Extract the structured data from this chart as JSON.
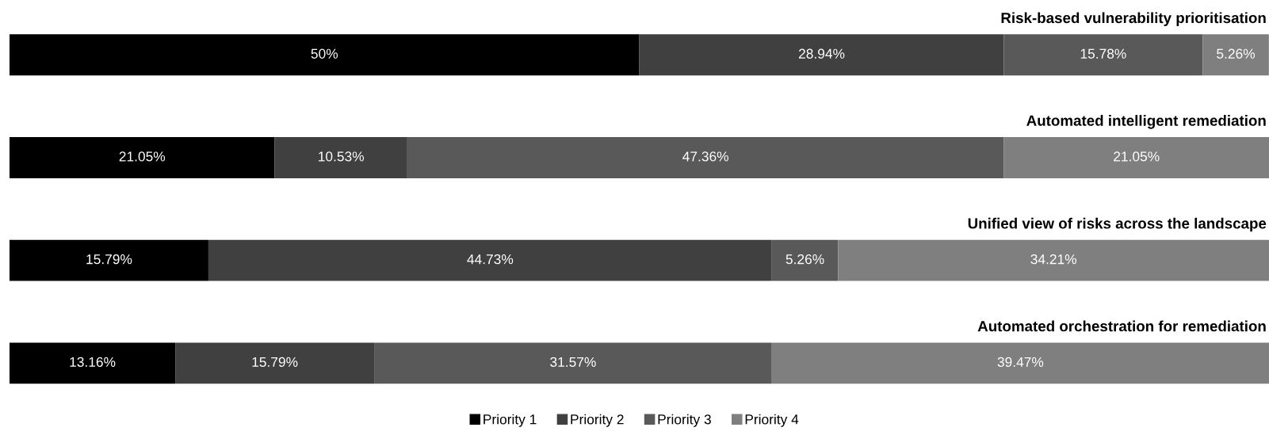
{
  "chart_data": {
    "type": "bar",
    "orientation": "horizontal",
    "stacked": true,
    "legend": "bottom",
    "categories": [
      "Risk-based vulnerability prioritisation",
      "Automated intelligent remediation",
      "Unified view of risks across the landscape",
      "Automated orchestration for remediation"
    ],
    "series": [
      {
        "name": "Priority 1",
        "color": "#000000",
        "values": [
          50,
          21.05,
          15.79,
          13.16
        ],
        "value_labels": [
          "50%",
          "21.05%",
          "15.79%",
          "13.16%"
        ]
      },
      {
        "name": "Priority 2",
        "color": "#404040",
        "values": [
          28.94,
          10.53,
          44.73,
          15.79
        ],
        "value_labels": [
          "28.94%",
          "10.53%",
          "44.73%",
          "15.79%"
        ]
      },
      {
        "name": "Priority 3",
        "color": "#595959",
        "values": [
          15.78,
          47.36,
          5.26,
          31.57
        ],
        "value_labels": [
          "15.78%",
          "47.36%",
          "5.26%",
          "31.57%"
        ]
      },
      {
        "name": "Priority 4",
        "color": "#7f7f7f",
        "values": [
          5.26,
          21.05,
          34.21,
          39.47
        ],
        "value_labels": [
          "5.26%",
          "21.05%",
          "34.21%",
          "39.47%"
        ]
      }
    ]
  }
}
